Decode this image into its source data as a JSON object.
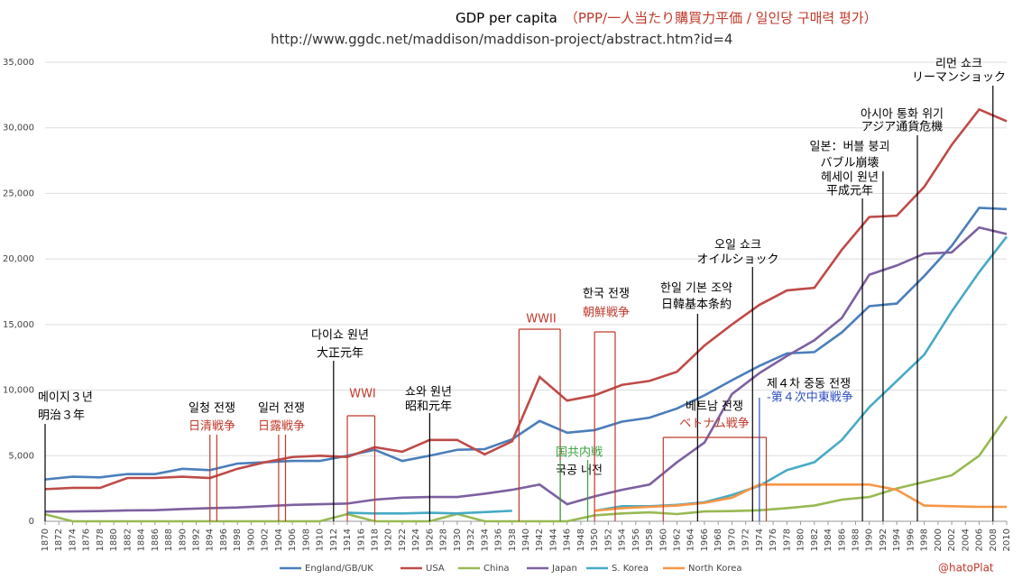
{
  "chart_data": {
    "type": "line",
    "title": "GDP per capita",
    "title_note": "（PPP/一人当たり購買力平価 / 일인당 구매력 평가）",
    "subtitle": "http://www.ggdc.net/maddison/maddison-project/abstract.htm?id=4",
    "credit": "@hatoPlat",
    "x": [
      1870,
      1874,
      1878,
      1882,
      1886,
      1890,
      1894,
      1898,
      1902,
      1906,
      1910,
      1914,
      1918,
      1922,
      1926,
      1930,
      1934,
      1938,
      1942,
      1946,
      1950,
      1954,
      1958,
      1962,
      1966,
      1970,
      1974,
      1978,
      1982,
      1986,
      1990,
      1994,
      1998,
      2002,
      2006,
      2010
    ],
    "xlim": [
      1870,
      2010
    ],
    "xticks": [
      1870,
      1872,
      1874,
      1876,
      1878,
      1880,
      1882,
      1884,
      1886,
      1888,
      1890,
      1892,
      1894,
      1896,
      1898,
      1900,
      1902,
      1904,
      1906,
      1908,
      1910,
      1912,
      1914,
      1916,
      1918,
      1920,
      1922,
      1924,
      1926,
      1928,
      1930,
      1932,
      1934,
      1936,
      1938,
      1940,
      1942,
      1944,
      1946,
      1948,
      1950,
      1952,
      1954,
      1956,
      1958,
      1960,
      1962,
      1964,
      1966,
      1968,
      1970,
      1972,
      1974,
      1976,
      1978,
      1980,
      1982,
      1984,
      1986,
      1988,
      1990,
      1992,
      1994,
      1996,
      1998,
      2000,
      2002,
      2004,
      2006,
      2008,
      2010
    ],
    "ylim": [
      0,
      35000
    ],
    "yticks": [
      0,
      {
        "value": 5000,
        "label": "5,000"
      },
      {
        "value": 10000,
        "label": "10,000"
      },
      {
        "value": 15000,
        "label": "15,000"
      },
      {
        "value": 20000,
        "label": "20,000"
      },
      {
        "value": 25000,
        "label": "25,000"
      },
      {
        "value": 30000,
        "label": "30,000"
      },
      {
        "value": 35000,
        "label": "35,000"
      }
    ],
    "grid": true,
    "series": [
      {
        "name": "England/GB/UK",
        "color": "#4a7ebb",
        "values": [
          3190,
          3400,
          3350,
          3600,
          3600,
          4000,
          3900,
          4400,
          4500,
          4600,
          4600,
          5000,
          5450,
          4600,
          5000,
          5450,
          5500,
          6250,
          7650,
          6750,
          6950,
          7600,
          7900,
          8600,
          9600,
          10750,
          11850,
          12800,
          12900,
          14400,
          16400,
          16600,
          18700,
          21000,
          23900,
          23800
        ]
      },
      {
        "name": "USA",
        "color": "#be4b48",
        "values": [
          2450,
          2550,
          2550,
          3300,
          3300,
          3400,
          3300,
          4000,
          4500,
          4900,
          5000,
          4900,
          5650,
          5300,
          6200,
          6200,
          5100,
          6100,
          11000,
          9200,
          9600,
          10400,
          10700,
          11400,
          13400,
          15000,
          16500,
          17600,
          17800,
          20700,
          23200,
          23300,
          25500,
          28700,
          31400,
          30500
        ]
      },
      {
        "name": "China",
        "color": "#98b954",
        "values": [
          530,
          0,
          0,
          0,
          0,
          0,
          0,
          0,
          0,
          0,
          0,
          550,
          0,
          0,
          0,
          560,
          0,
          0,
          0,
          0,
          450,
          600,
          680,
          550,
          750,
          780,
          840,
          1000,
          1200,
          1650,
          1850,
          2500,
          3000,
          3500,
          5000,
          8000
        ]
      },
      {
        "name": "Japan",
        "color": "#7d60a0",
        "values": [
          740,
          750,
          780,
          830,
          850,
          930,
          1000,
          1050,
          1150,
          1250,
          1300,
          1350,
          1650,
          1800,
          1850,
          1850,
          2100,
          2400,
          2800,
          1300,
          1900,
          2400,
          2800,
          4500,
          6000,
          9700,
          11300,
          12600,
          13800,
          15500,
          18800,
          19500,
          20400,
          20500,
          22400,
          21900
        ]
      },
      {
        "name": "S. Korea",
        "color": "#46aac5",
        "values": [
          null,
          null,
          null,
          null,
          null,
          null,
          null,
          null,
          null,
          null,
          null,
          650,
          600,
          600,
          650,
          600,
          700,
          800,
          null,
          null,
          800,
          1150,
          1150,
          1250,
          1450,
          2000,
          2700,
          3900,
          4500,
          6200,
          8700,
          10700,
          12700,
          16000,
          19000,
          21700
        ]
      },
      {
        "name": "North Korea",
        "color": "#f79646",
        "values": [
          null,
          null,
          null,
          null,
          null,
          null,
          null,
          null,
          null,
          null,
          null,
          null,
          null,
          null,
          null,
          null,
          null,
          null,
          null,
          null,
          800,
          1000,
          1100,
          1200,
          1400,
          1800,
          2800,
          2800,
          2800,
          2800,
          2800,
          2400,
          1200,
          1150,
          1100,
          1100
        ]
      }
    ],
    "annotations": [
      {
        "lines": [
          {
            "text": "메이지３년",
            "color": "#000"
          },
          {
            "text": "明治３年",
            "color": "#000"
          }
        ],
        "years": [
          1870
        ],
        "mark_color": "#000"
      },
      {
        "lines": [
          {
            "text": "일청 전쟁",
            "color": "#000"
          },
          {
            "text": "日清戦争",
            "color": "#c0392b"
          }
        ],
        "years": [
          1894,
          1895
        ],
        "mark_color": "#c0392b"
      },
      {
        "lines": [
          {
            "text": "일러 전쟁",
            "color": "#000"
          },
          {
            "text": "日露戦争",
            "color": "#c0392b"
          }
        ],
        "years": [
          1904,
          1905
        ],
        "mark_color": "#c0392b"
      },
      {
        "lines": [
          {
            "text": "WWI",
            "color": "#c0392b"
          }
        ],
        "years": [
          1914,
          1918
        ],
        "mark_color": "#c0392b",
        "bracket": true
      },
      {
        "lines": [
          {
            "text": "다이쇼 원년",
            "color": "#000"
          },
          {
            "text": "大正元年",
            "color": "#000"
          }
        ],
        "years": [
          1912
        ],
        "mark_color": "#000"
      },
      {
        "lines": [
          {
            "text": "쇼와 원년",
            "color": "#000"
          },
          {
            "text": "昭和元年",
            "color": "#000"
          }
        ],
        "years": [
          1926
        ],
        "mark_color": "#000"
      },
      {
        "lines": [
          {
            "text": "WWII",
            "color": "#c0392b"
          }
        ],
        "years": [
          1939,
          1945
        ],
        "mark_color": "#c0392b",
        "bracket": true
      },
      {
        "lines": [
          {
            "text": "国共内戦",
            "color": "#3aa040"
          },
          {
            "text": "국공 내전",
            "color": "#000"
          }
        ],
        "years": [
          1945,
          1949
        ],
        "mark_color": "#3aa040"
      },
      {
        "lines": [
          {
            "text": "한국 전쟁",
            "color": "#000"
          },
          {
            "text": "朝鮮戦争",
            "color": "#c0392b"
          }
        ],
        "years": [
          1950,
          1953
        ],
        "mark_color": "#c0392b",
        "bracket": true
      },
      {
        "lines": [
          {
            "text": "한일 기본 조약",
            "color": "#000"
          },
          {
            "text": "日韓基本条約",
            "color": "#000"
          }
        ],
        "years": [
          1965
        ],
        "mark_color": "#000"
      },
      {
        "lines": [
          {
            "text": "베트남 전쟁",
            "color": "#000"
          },
          {
            "text": "ベトナム戦争",
            "color": "#c0392b"
          }
        ],
        "years": [
          1960,
          1975
        ],
        "mark_color": "#c0392b",
        "bracket": true
      },
      {
        "lines": [
          {
            "text": "오일 쇼크",
            "color": "#000"
          },
          {
            "text": "オイルショック",
            "color": "#000"
          }
        ],
        "years": [
          1973
        ],
        "mark_color": "#000"
      },
      {
        "lines": [
          {
            "text": "제４차 중동 전쟁",
            "color": "#000"
          },
          {
            "text": "-第４次中東戦争",
            "color": "#3050c0"
          }
        ],
        "years": [
          1974
        ],
        "mark_color": "#3050c0"
      },
      {
        "lines": [
          {
            "text": "헤세이 원년",
            "color": "#000"
          },
          {
            "text": "平成元年",
            "color": "#000"
          }
        ],
        "years": [
          1989
        ],
        "mark_color": "#000"
      },
      {
        "lines": [
          {
            "text": "일본：버블 붕괴",
            "color": "#000"
          },
          {
            "text": "バブル崩壊",
            "color": "#000"
          }
        ],
        "years": [
          1992
        ],
        "mark_color": "#000"
      },
      {
        "lines": [
          {
            "text": "아시아 통화 위기",
            "color": "#000"
          },
          {
            "text": "アジア通貨危機",
            "color": "#000"
          }
        ],
        "years": [
          1997
        ],
        "mark_color": "#000"
      },
      {
        "lines": [
          {
            "text": "리먼 쇼크",
            "color": "#000"
          },
          {
            "text": "リーマンショック",
            "color": "#000"
          }
        ],
        "years": [
          2008
        ],
        "mark_color": "#000"
      }
    ]
  }
}
